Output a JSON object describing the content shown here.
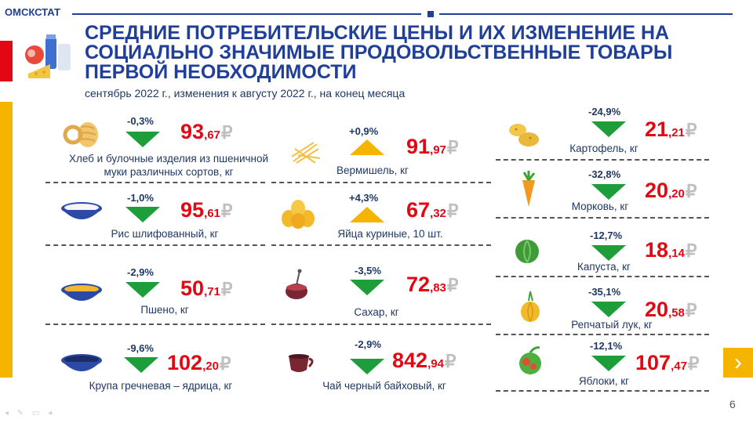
{
  "brand": "ОМСКСТАТ",
  "title": "Средние потребительские цены и их изменение на социально значимые продовольственные товары первой необходимости",
  "subtitle": "сентябрь 2022 г., изменения к августу 2022 г., на конец месяца",
  "currency_symbol": "₽",
  "page_number": "6",
  "nav_glyphs": "◂ ✎ ▭ ◂",
  "next_glyph": "›",
  "colors": {
    "decrease": "#1e9e3b",
    "increase": "#f5b400",
    "price": "#e30613",
    "title": "#1f3f99"
  },
  "items": [
    {
      "name": "Хлеб и булочные изделия из пшеничной муки различных сортов, кг",
      "change": "-0,3%",
      "direction": "down",
      "price_int": "93",
      "price_dec": ",67",
      "icon": "bread-icon"
    },
    {
      "name": "Рис шлифованный, кг",
      "change": "-1,0%",
      "direction": "down",
      "price_int": "95",
      "price_dec": ",61",
      "icon": "rice-bowl-icon"
    },
    {
      "name": "Пшено, кг",
      "change": "-2,9%",
      "direction": "down",
      "price_int": "50",
      "price_dec": ",71",
      "icon": "millet-bowl-icon"
    },
    {
      "name": "Крупа гречневая – ядрица, кг",
      "change": "-9,6%",
      "direction": "down",
      "price_int": "102",
      "price_dec": ",20",
      "icon": "buckwheat-bowl-icon"
    },
    {
      "name": "Вермишель, кг",
      "change": "+0,9%",
      "direction": "up",
      "price_int": "91",
      "price_dec": ",97",
      "icon": "noodles-icon"
    },
    {
      "name": "Яйца куриные, 10 шт.",
      "change": "+4,3%",
      "direction": "up",
      "price_int": "67",
      "price_dec": ",32",
      "icon": "eggs-icon"
    },
    {
      "name": "Сахар, кг",
      "change": "-3,5%",
      "direction": "down",
      "price_int": "72",
      "price_dec": ",83",
      "icon": "sugar-icon"
    },
    {
      "name": "Чай черный байховый, кг",
      "change": "-2,9%",
      "direction": "down",
      "price_int": "842",
      "price_dec": ",94",
      "icon": "tea-cup-icon"
    },
    {
      "name": "Картофель, кг",
      "change": "-24,9%",
      "direction": "down",
      "price_int": "21",
      "price_dec": ",21",
      "icon": "potato-icon"
    },
    {
      "name": "Морковь, кг",
      "change": "-32,8%",
      "direction": "down",
      "price_int": "20",
      "price_dec": ",20",
      "icon": "carrot-icon"
    },
    {
      "name": "Капуста, кг",
      "change": "-12,7%",
      "direction": "down",
      "price_int": "18",
      "price_dec": ",14",
      "icon": "cabbage-icon"
    },
    {
      "name": "Репчатый лук, кг",
      "change": "-35,1%",
      "direction": "down",
      "price_int": "20",
      "price_dec": ",58",
      "icon": "onion-icon"
    },
    {
      "name": "Яблоки, кг",
      "change": "-12,1%",
      "direction": "down",
      "price_int": "107",
      "price_dec": ",47",
      "icon": "apple-icon"
    }
  ]
}
